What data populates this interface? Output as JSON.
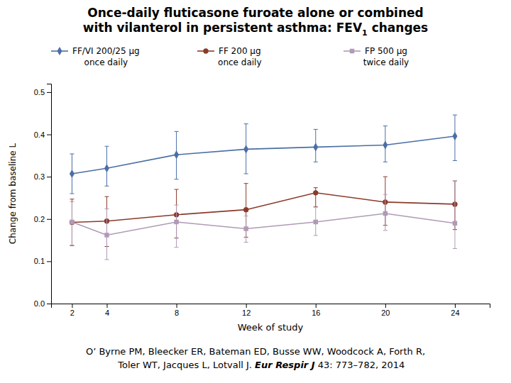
{
  "chart_data": {
    "type": "line",
    "title": [
      "Once-daily fluticasone furoate alone or combined",
      "with vilanterol in persistent asthma: FEV"
    ],
    "title_subscript": "1",
    "title_end": " changes",
    "xlabel": "Week of study",
    "ylabel": "Change from baseline L",
    "x": [
      2,
      4,
      8,
      12,
      16,
      20,
      24
    ],
    "xlim": [
      0.8,
      26
    ],
    "xticks": [
      2,
      4,
      8,
      12,
      16,
      20,
      24
    ],
    "ylim": [
      0.0,
      0.52
    ],
    "yticks": [
      {
        "value": 0.0,
        "label": "0.0"
      },
      0.1,
      0.2,
      0.3,
      0.4,
      0.5
    ],
    "grid": false,
    "legend": "top",
    "series": [
      {
        "name": "FF/VI 200/25 μg",
        "sublabel": "once daily",
        "color": "#4a6fa5",
        "marker": "diamond",
        "values": [
          0.307,
          0.32,
          0.352,
          0.365,
          0.37,
          0.375,
          0.396
        ],
        "err_lo": [
          0.047,
          0.042,
          0.058,
          0.058,
          0.035,
          0.04,
          0.058
        ],
        "err_hi": [
          0.047,
          0.052,
          0.055,
          0.06,
          0.042,
          0.045,
          0.05
        ]
      },
      {
        "name": "FF 200 μg",
        "sublabel": "once daily",
        "color": "#8b3a2a",
        "marker": "circle",
        "values": [
          0.192,
          0.195,
          0.21,
          0.222,
          0.262,
          0.24,
          0.235
        ],
        "err_lo": [
          0.055,
          0.06,
          0.055,
          0.065,
          0.033,
          0.055,
          0.06
        ],
        "err_hi": [
          0.055,
          0.058,
          0.06,
          0.062,
          0.012,
          0.06,
          0.055
        ]
      },
      {
        "name": "FP 500 μg",
        "sublabel": "twice daily",
        "color": "#b09ab5",
        "marker": "square",
        "values": [
          0.193,
          0.162,
          0.193,
          0.177,
          0.193,
          0.213,
          0.19
        ],
        "err_lo": [
          0.055,
          0.058,
          0.06,
          0.032,
          0.032,
          0.04,
          0.06
        ],
        "err_hi": [
          0.048,
          0.062,
          0.04,
          0.03,
          0.035,
          0.045,
          0.1
        ]
      }
    ],
    "annotations": [
      "O’ Byrne PM, Bleecker ER, Bateman ED, Busse WW, Woodcock A, Forth R,",
      [
        "    Toler WT, Jacques L, Lotvall J. ",
        "Eur Respir J",
        " 43: 773–782, 2014"
      ]
    ]
  }
}
